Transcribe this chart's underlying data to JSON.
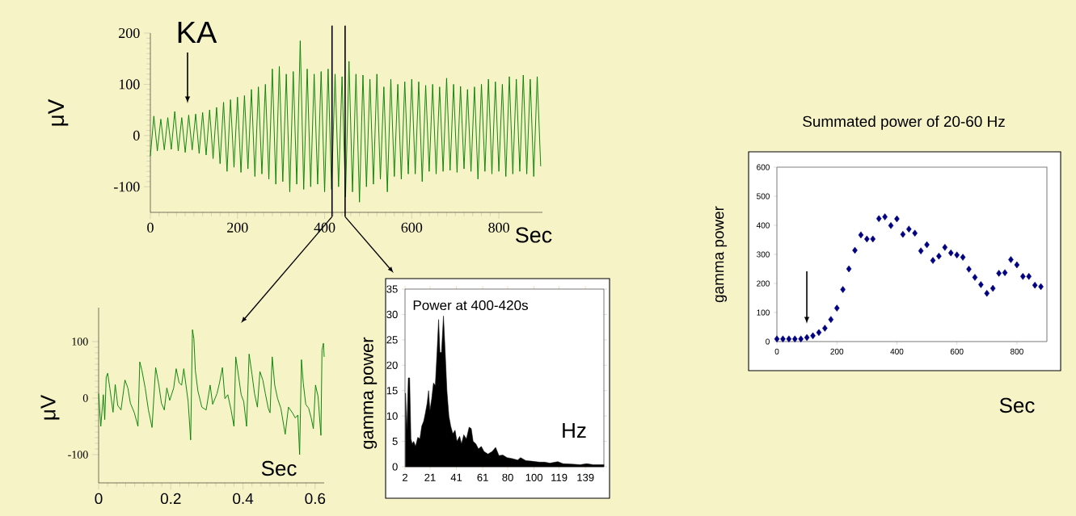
{
  "chart_data": [
    {
      "type": "line",
      "xlabel": "Sec",
      "ylabel": "μV",
      "color": "#008000",
      "annotations": [
        "KA"
      ],
      "ref_lines": [
        {
          "axis": "x",
          "value": 417,
          "color": "#000000"
        },
        {
          "axis": "x",
          "value": 447,
          "color": "#000000"
        }
      ],
      "xlim": [
        0,
        900
      ],
      "ylim": [
        -150,
        200
      ],
      "xticks": [
        0,
        200,
        400,
        600,
        800
      ],
      "yticks": [
        -100,
        0,
        100,
        200
      ],
      "x": [
        0,
        8,
        16,
        24,
        32,
        40,
        48,
        56,
        64,
        72,
        80,
        88,
        96,
        104,
        112,
        120,
        128,
        136,
        144,
        152,
        160,
        168,
        176,
        184,
        192,
        200,
        208,
        216,
        224,
        232,
        240,
        248,
        256,
        264,
        272,
        280,
        288,
        296,
        304,
        312,
        320,
        328,
        336,
        344,
        352,
        360,
        368,
        376,
        384,
        392,
        400,
        408,
        416,
        424,
        432,
        440,
        448,
        456,
        464,
        472,
        480,
        488,
        496,
        504,
        512,
        520,
        528,
        536,
        544,
        552,
        560,
        568,
        576,
        584,
        592,
        600,
        608,
        616,
        624,
        632,
        640,
        648,
        656,
        664,
        672,
        680,
        688,
        696,
        704,
        712,
        720,
        728,
        736,
        744,
        752,
        760,
        768,
        776,
        784,
        792,
        800,
        808,
        816,
        824,
        832,
        840,
        848,
        856,
        864,
        872,
        880,
        888,
        896
      ],
      "values": [
        -40,
        38,
        -30,
        32,
        -28,
        35,
        -27,
        47,
        -30,
        35,
        -33,
        40,
        -28,
        42,
        -35,
        45,
        -38,
        50,
        -45,
        55,
        -55,
        65,
        -70,
        70,
        -62,
        75,
        -72,
        78,
        -65,
        90,
        -80,
        95,
        -75,
        100,
        -85,
        130,
        -95,
        135,
        -90,
        120,
        -110,
        125,
        -95,
        185,
        -105,
        130,
        -100,
        120,
        -95,
        125,
        -110,
        130,
        -105,
        120,
        -100,
        115,
        -120,
        145,
        -110,
        120,
        -130,
        118,
        -100,
        110,
        -95,
        120,
        -85,
        95,
        -110,
        110,
        -80,
        100,
        -85,
        105,
        -75,
        110,
        -75,
        105,
        -90,
        98,
        -70,
        100,
        -75,
        95,
        -70,
        112,
        -68,
        100,
        -72,
        96,
        -65,
        90,
        -70,
        95,
        -85,
        100,
        -70,
        110,
        -75,
        105,
        -70,
        100,
        -80,
        115,
        -75,
        110,
        -70,
        118,
        -75,
        110,
        -80,
        115,
        -60
      ]
    },
    {
      "type": "line",
      "xlabel": "Sec",
      "ylabel": "μV",
      "color": "#008000",
      "xlim": [
        0,
        0.625
      ],
      "ylim": [
        -150,
        160
      ],
      "xticks": [
        0,
        0.2,
        0.4,
        0.6
      ],
      "yticks": [
        -100,
        0,
        100
      ],
      "x": [
        0,
        0.006,
        0.013,
        0.017,
        0.021,
        0.025,
        0.031,
        0.04,
        0.046,
        0.053,
        0.062,
        0.073,
        0.081,
        0.088,
        0.099,
        0.109,
        0.114,
        0.12,
        0.129,
        0.138,
        0.148,
        0.158,
        0.167,
        0.174,
        0.182,
        0.189,
        0.197,
        0.208,
        0.215,
        0.223,
        0.23,
        0.236,
        0.242,
        0.248,
        0.255,
        0.26,
        0.264,
        0.268,
        0.275,
        0.286,
        0.298,
        0.309,
        0.316,
        0.328,
        0.335,
        0.343,
        0.35,
        0.358,
        0.367,
        0.375,
        0.38,
        0.386,
        0.395,
        0.402,
        0.41,
        0.417,
        0.425,
        0.432,
        0.44,
        0.447,
        0.455,
        0.462,
        0.47,
        0.475,
        0.481,
        0.488,
        0.496,
        0.505,
        0.517,
        0.526,
        0.537,
        0.545,
        0.552,
        0.557,
        0.562,
        0.567,
        0.574,
        0.582,
        0.589,
        0.595,
        0.601,
        0.608,
        0.616,
        0.619,
        0.623,
        0.625
      ],
      "values": [
        8,
        -50,
        6,
        -38,
        37,
        44,
        18,
        -25,
        24,
        -13,
        -21,
        32,
        18,
        -9,
        -26,
        -50,
        64,
        49,
        18,
        -21,
        -52,
        54,
        23,
        -9,
        -21,
        18,
        -4,
        18,
        52,
        27,
        23,
        52,
        23,
        -6,
        -74,
        121,
        105,
        49,
        13,
        -16,
        -21,
        23,
        -11,
        8,
        27,
        54,
        -1,
        6,
        -21,
        -50,
        73,
        47,
        6,
        -6,
        -50,
        78,
        42,
        8,
        -16,
        47,
        32,
        8,
        -18,
        -26,
        73,
        23,
        -1,
        -18,
        -64,
        -16,
        -26,
        -35,
        -30,
        -100,
        68,
        27,
        -11,
        -18,
        -35,
        -54,
        23,
        3,
        -66,
        85,
        97,
        73
      ]
    },
    {
      "type": "area",
      "title": "Power at 400-420s",
      "xlabel": "Hz",
      "ylabel": "gamma power",
      "color": "#000000",
      "xlim": [
        2,
        153
      ],
      "ylim": [
        0,
        35
      ],
      "xticks": [
        2,
        21,
        41,
        61,
        80,
        100,
        119,
        139
      ],
      "yticks": [
        0,
        5,
        10,
        15,
        20,
        25,
        30,
        35
      ],
      "x": [
        2.4,
        3.4,
        4.5,
        5.5,
        6.5,
        7.5,
        8.6,
        10,
        11.7,
        13.3,
        14.7,
        16.2,
        17.4,
        18.8,
        19.9,
        20.9,
        22.3,
        23.6,
        25,
        26.4,
        27.5,
        28.5,
        29.7,
        31.2,
        32.6,
        33.8,
        35.3,
        36.7,
        38.3,
        40,
        41.4,
        43.5,
        44.9,
        46.6,
        48.6,
        50.7,
        52.3,
        53.7,
        55.8,
        57.8,
        59.9,
        62,
        65,
        68.1,
        70.8,
        73.3,
        76.3,
        79.4,
        83.5,
        87.6,
        89.7,
        93.8,
        97.9,
        104,
        108,
        112,
        118,
        122,
        129,
        135,
        140,
        145,
        153
      ],
      "values": [
        14.5,
        7,
        17.5,
        17.5,
        5.5,
        4.5,
        5,
        4,
        5.8,
        5.5,
        8,
        9,
        10.5,
        12.5,
        15,
        11,
        13.5,
        16.5,
        16,
        23,
        29,
        22.5,
        22.5,
        29.7,
        22,
        15,
        10,
        8,
        6.5,
        7.2,
        5,
        6,
        4.5,
        6.3,
        5.5,
        7.8,
        7.5,
        5,
        4.5,
        3.5,
        4,
        3,
        2.5,
        3,
        3.8,
        2.2,
        2.3,
        1.8,
        1.6,
        1.3,
        1.8,
        1.2,
        1.1,
        0.9,
        0.9,
        0.7,
        1,
        0.6,
        0.5,
        0.4,
        0.6,
        0.4,
        0.4
      ]
    },
    {
      "type": "scatter",
      "title": "Summated power of 20-60 Hz",
      "xlabel": "Sec",
      "ylabel": "gamma power",
      "color": "#000080",
      "marker": "diamond",
      "xlim": [
        0,
        900
      ],
      "ylim": [
        0,
        600
      ],
      "xticks": [
        0,
        200,
        400,
        600,
        800
      ],
      "yticks": [
        0,
        100,
        200,
        300,
        400,
        500,
        600
      ],
      "x": [
        0,
        20,
        40,
        60,
        80,
        100,
        120,
        140,
        160,
        180,
        200,
        220,
        240,
        260,
        280,
        300,
        320,
        340,
        360,
        380,
        400,
        420,
        440,
        460,
        480,
        500,
        520,
        540,
        560,
        580,
        600,
        620,
        640,
        660,
        680,
        700,
        720,
        740,
        760,
        780,
        800,
        820,
        840,
        860,
        880
      ],
      "values": [
        9,
        9,
        9,
        9,
        9,
        14,
        20,
        31,
        46,
        76,
        115,
        179,
        250,
        314,
        367,
        353,
        353,
        423,
        429,
        399,
        422,
        369,
        387,
        373,
        312,
        333,
        279,
        294,
        324,
        305,
        298,
        290,
        249,
        221,
        196,
        166,
        183,
        235,
        237,
        282,
        264,
        224,
        224,
        194,
        189
      ]
    }
  ]
}
